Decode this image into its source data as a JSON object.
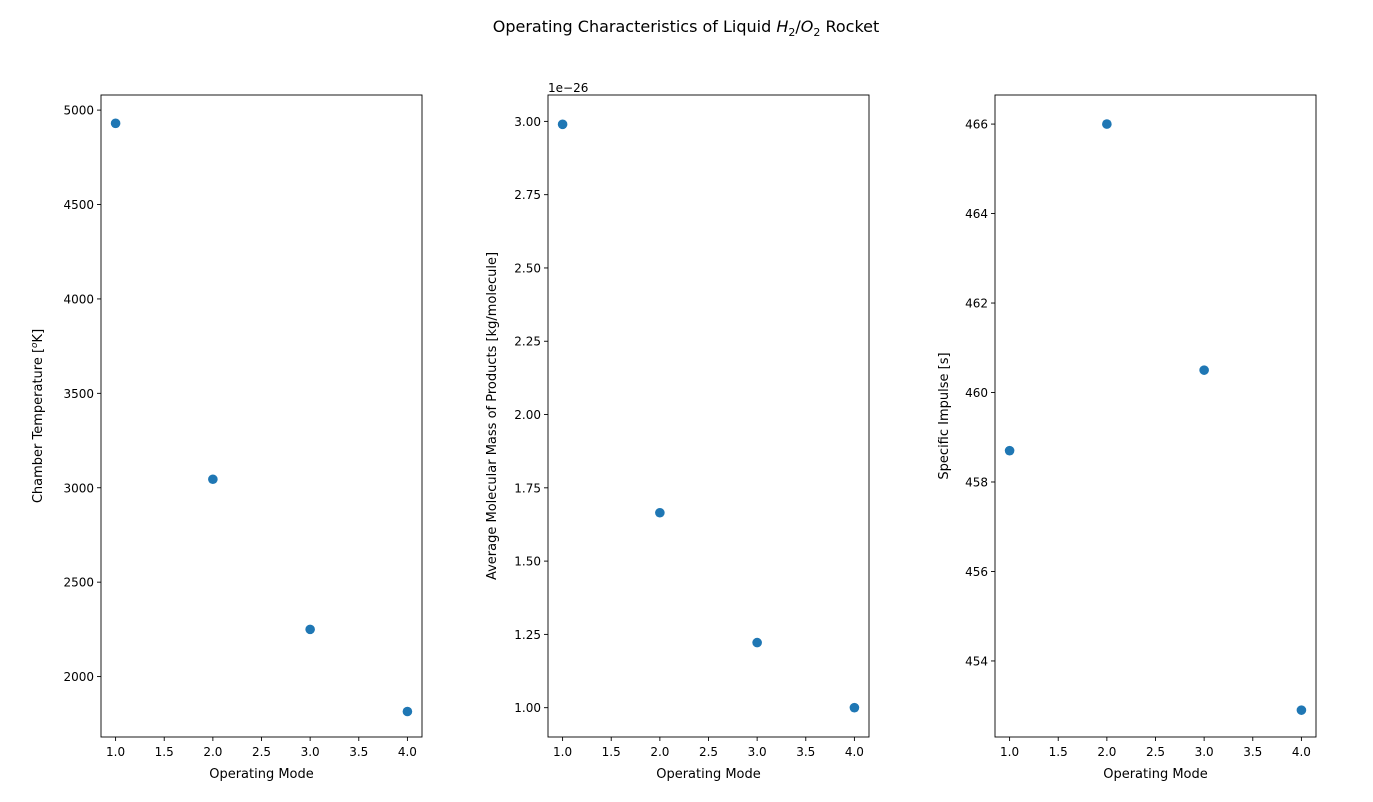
{
  "figure": {
    "title_prefix": "Operating Characteristics of Liquid ",
    "title_h": "H",
    "title_h_sub": "2",
    "title_slash": "/",
    "title_o": "O",
    "title_o_sub": "2",
    "title_suffix": " Rocket"
  },
  "chart_data": [
    {
      "type": "scatter",
      "xlabel": "Operating Mode",
      "ylabel": "Chamber Temperature [",
      "ylabel_sup": "o",
      "ylabel_end": "K]",
      "x": [
        1,
        2,
        3,
        4
      ],
      "y": [
        4930,
        3045,
        2250,
        1815
      ],
      "xlim": [
        0.85,
        4.15
      ],
      "ylim": [
        1680,
        5080
      ],
      "xticks": [
        1.0,
        1.5,
        2.0,
        2.5,
        3.0,
        3.5,
        4.0
      ],
      "xtick_labels": [
        "1.0",
        "1.5",
        "2.0",
        "2.5",
        "3.0",
        "3.5",
        "4.0"
      ],
      "yticks": [
        2000,
        2500,
        3000,
        3500,
        4000,
        4500,
        5000
      ],
      "ytick_labels": [
        "2000",
        "2500",
        "3000",
        "3500",
        "4000",
        "4500",
        "5000"
      ],
      "offset_label": "",
      "grid": false,
      "color": "#1f77b4"
    },
    {
      "type": "scatter",
      "xlabel": "Operating Mode",
      "ylabel": "Average Molecular Mass of Products [kg/molecule]",
      "ylabel_sup": "",
      "ylabel_end": "",
      "x": [
        1,
        2,
        3,
        4
      ],
      "y": [
        2.99e-26,
        1.665e-26,
        1.222e-26,
        1e-26
      ],
      "xlim": [
        0.85,
        4.15
      ],
      "ylim": [
        9e-27,
        3.09e-26
      ],
      "xticks": [
        1.0,
        1.5,
        2.0,
        2.5,
        3.0,
        3.5,
        4.0
      ],
      "xtick_labels": [
        "1.0",
        "1.5",
        "2.0",
        "2.5",
        "3.0",
        "3.5",
        "4.0"
      ],
      "yticks": [
        1e-26,
        1.25e-26,
        1.5e-26,
        1.75e-26,
        2e-26,
        2.25e-26,
        2.5e-26,
        2.75e-26,
        3e-26
      ],
      "ytick_labels": [
        "1.00",
        "1.25",
        "1.50",
        "1.75",
        "2.00",
        "2.25",
        "2.50",
        "2.75",
        "3.00"
      ],
      "offset_label": "1e−26",
      "grid": false,
      "color": "#1f77b4"
    },
    {
      "type": "scatter",
      "xlabel": "Operating Mode",
      "ylabel": "Specific Impulse [s]",
      "ylabel_sup": "",
      "ylabel_end": "",
      "x": [
        1,
        2,
        3,
        4
      ],
      "y": [
        458.7,
        466.0,
        460.5,
        452.9
      ],
      "xlim": [
        0.85,
        4.15
      ],
      "ylim": [
        452.3,
        466.65
      ],
      "xticks": [
        1.0,
        1.5,
        2.0,
        2.5,
        3.0,
        3.5,
        4.0
      ],
      "xtick_labels": [
        "1.0",
        "1.5",
        "2.0",
        "2.5",
        "3.0",
        "3.5",
        "4.0"
      ],
      "yticks": [
        454,
        456,
        458,
        460,
        462,
        464,
        466
      ],
      "ytick_labels": [
        "454",
        "456",
        "458",
        "460",
        "462",
        "464",
        "466"
      ],
      "offset_label": "",
      "grid": false,
      "color": "#1f77b4"
    }
  ]
}
